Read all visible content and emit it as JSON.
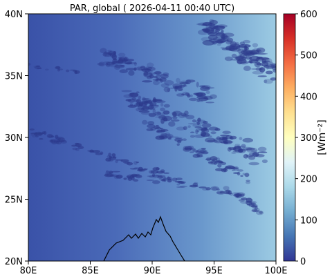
{
  "title": "PAR, global ( 2026-04-11 00:40 UTC)",
  "x_ticks": [
    "80E",
    "85E",
    "90E",
    "95E",
    "100E"
  ],
  "y_ticks": [
    "40N",
    "35N",
    "30N",
    "25N",
    "20N"
  ],
  "colorbar": {
    "label": "[Wm⁻²]",
    "ticks": [
      "600",
      "500",
      "400",
      "300",
      "200",
      "100",
      "0"
    ],
    "range": [
      0,
      600
    ],
    "colormap": "RdYlBu_r",
    "colors": [
      "#313695",
      "#4575b4",
      "#74add1",
      "#abd9e9",
      "#e0f3f8",
      "#ffffbf",
      "#fee090",
      "#fdae61",
      "#f46d43",
      "#d73027",
      "#a50026"
    ]
  },
  "map": {
    "lon_range": [
      80,
      100
    ],
    "lat_range": [
      20,
      40
    ],
    "background_gradient": [
      "#3a52a8",
      "#4a6ab8",
      "#6a98cc",
      "#9ccbe3"
    ],
    "cloud_color": "#2c3a8c",
    "coastline_color": "#000000"
  }
}
